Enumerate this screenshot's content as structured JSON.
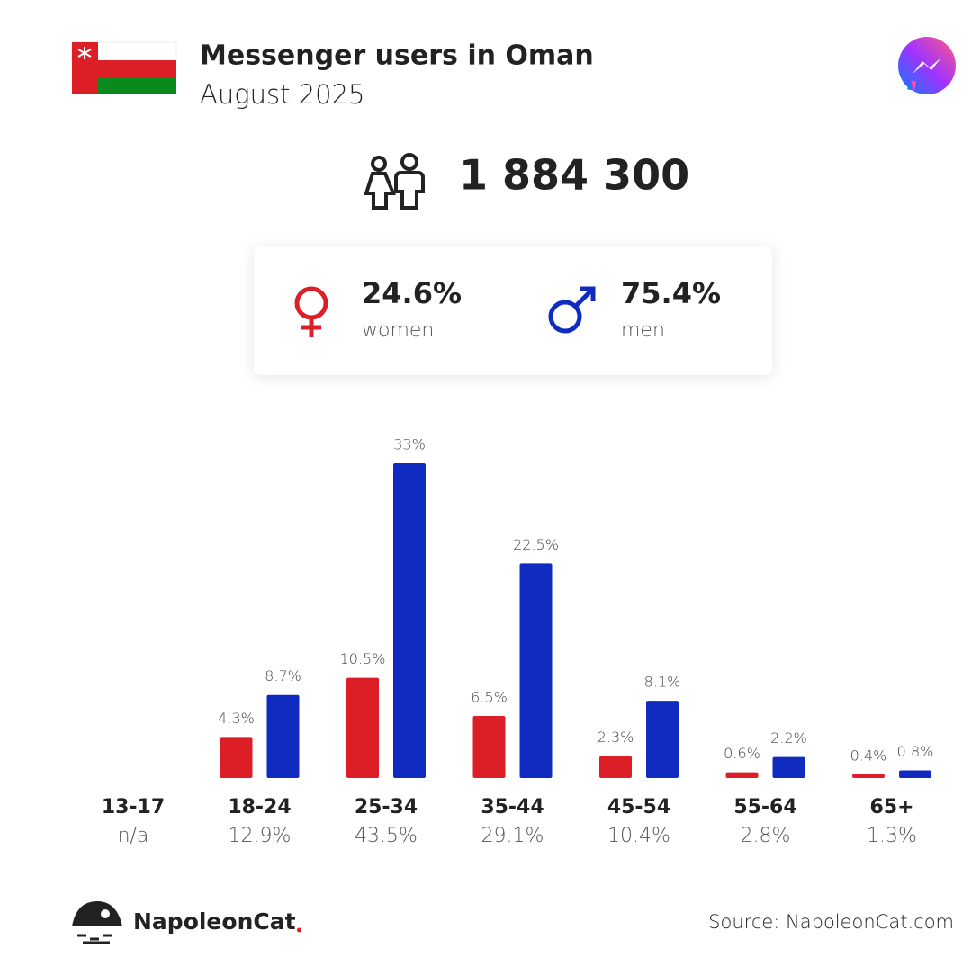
{
  "header": {
    "title": "Messenger users in Oman",
    "subtitle": "August 2025"
  },
  "total": {
    "value": 1884300,
    "label": "1 884 300"
  },
  "chart_data": {
    "type": "bar",
    "categories": [
      "13-17",
      "18-24",
      "25-34",
      "35-44",
      "45-54",
      "55-64",
      "65+"
    ],
    "category_totals": [
      null,
      12.9,
      43.5,
      29.1,
      10.4,
      2.8,
      1.3
    ],
    "category_total_labels": [
      "n/a",
      "12.9%",
      "43.5%",
      "29.1%",
      "10.4%",
      "2.8%",
      "1.3%"
    ],
    "series": [
      {
        "name": "women",
        "color": "#dc1f26",
        "share": 24.6,
        "share_label": "24.6%",
        "values": [
          null,
          4.3,
          10.5,
          6.5,
          2.3,
          0.6,
          0.4
        ],
        "value_labels": [
          null,
          "4.3%",
          "10.5%",
          "6.5%",
          "2.3%",
          "0.6%",
          "0.4%"
        ]
      },
      {
        "name": "men",
        "color": "#0f2bc0",
        "share": 75.4,
        "share_label": "75.4%",
        "values": [
          null,
          8.7,
          33,
          22.5,
          8.1,
          2.2,
          0.8
        ],
        "value_labels": [
          null,
          "8.7%",
          "33%",
          "22.5%",
          "8.1%",
          "2.2%",
          "0.8%"
        ]
      }
    ]
  },
  "footer": {
    "brand": "NapoleonCat",
    "source": "Source: NapoleonCat.com"
  }
}
